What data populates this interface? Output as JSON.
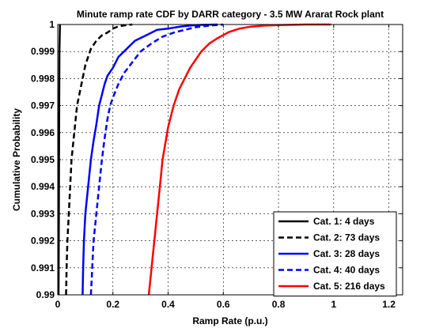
{
  "chart_data": {
    "type": "line",
    "title": "Minute ramp rate CDF by DARR category - 3.5 MW Ararat Rock plant",
    "xlabel": "Ramp Rate (p.u.)",
    "ylabel": "Cumulative Probability",
    "xlim": [
      0,
      1.25
    ],
    "ylim": [
      0.99,
      1.0
    ],
    "x_ticks": [
      "0",
      "0.2",
      "0.4",
      "0.6",
      "0.8",
      "1",
      "1.2"
    ],
    "x_tick_values": [
      0,
      0.2,
      0.4,
      0.6,
      0.8,
      1.0,
      1.2
    ],
    "y_ticks": [
      "0.99",
      "0.991",
      "0.992",
      "0.993",
      "0.994",
      "0.995",
      "0.996",
      "0.997",
      "0.998",
      "0.999",
      "1"
    ],
    "y_tick_values": [
      0.99,
      0.991,
      0.992,
      0.993,
      0.994,
      0.995,
      0.996,
      0.997,
      0.998,
      0.999,
      1.0
    ],
    "grid": "on",
    "legend_position": "bottom-right",
    "series": [
      {
        "name": "Cat. 1: 4 days",
        "color": "#000000",
        "style": "solid",
        "x": [
          0.003,
          0.004,
          0.005,
          0.006,
          0.008
        ],
        "y": [
          0.99,
          0.993,
          0.996,
          0.999,
          1.0
        ]
      },
      {
        "name": "Cat. 2: 73 days",
        "color": "#000000",
        "style": "dashed",
        "x": [
          0.03,
          0.032,
          0.035,
          0.04,
          0.045,
          0.05,
          0.06,
          0.07,
          0.08,
          0.09,
          0.1,
          0.12,
          0.14,
          0.16,
          0.18,
          0.2,
          0.22,
          0.25,
          0.27
        ],
        "y": [
          0.99,
          0.991,
          0.992,
          0.993,
          0.994,
          0.995,
          0.996,
          0.997,
          0.9975,
          0.998,
          0.9985,
          0.9991,
          0.9994,
          0.9996,
          0.9997,
          0.99985,
          0.99993,
          0.99998,
          1.0
        ]
      },
      {
        "name": "Cat. 3: 28 days",
        "color": "#0000ff",
        "style": "solid",
        "x": [
          0.09,
          0.092,
          0.095,
          0.1,
          0.11,
          0.12,
          0.13,
          0.14,
          0.15,
          0.16,
          0.17,
          0.18,
          0.2,
          0.22,
          0.25,
          0.28,
          0.32,
          0.36,
          0.4,
          0.45,
          0.5,
          0.58
        ],
        "y": [
          0.99,
          0.991,
          0.992,
          0.993,
          0.994,
          0.995,
          0.9957,
          0.9963,
          0.997,
          0.9974,
          0.9978,
          0.9981,
          0.9984,
          0.9988,
          0.9991,
          0.9994,
          0.9996,
          0.9998,
          0.99985,
          0.99993,
          0.99998,
          1.0
        ]
      },
      {
        "name": "Cat. 4: 40 days",
        "color": "#0000ff",
        "style": "dashed",
        "x": [
          0.12,
          0.125,
          0.13,
          0.14,
          0.15,
          0.16,
          0.17,
          0.18,
          0.19,
          0.2,
          0.22,
          0.24,
          0.27,
          0.3,
          0.34,
          0.38,
          0.42,
          0.46,
          0.5,
          0.55,
          0.6
        ],
        "y": [
          0.99,
          0.991,
          0.992,
          0.993,
          0.994,
          0.995,
          0.9958,
          0.9965,
          0.997,
          0.9973,
          0.9978,
          0.9982,
          0.9986,
          0.999,
          0.9993,
          0.99955,
          0.9997,
          0.9998,
          0.9999,
          0.99996,
          1.0
        ]
      },
      {
        "name": "Cat. 5: 216 days",
        "color": "#ff0000",
        "style": "solid",
        "x": [
          0.33,
          0.34,
          0.35,
          0.36,
          0.37,
          0.38,
          0.39,
          0.4,
          0.42,
          0.44,
          0.46,
          0.48,
          0.5,
          0.52,
          0.55,
          0.58,
          0.62,
          0.66,
          0.7,
          0.75,
          0.8,
          0.9,
          0.99
        ],
        "y": [
          0.99,
          0.991,
          0.992,
          0.993,
          0.994,
          0.995,
          0.9956,
          0.9962,
          0.997,
          0.9976,
          0.998,
          0.9984,
          0.9987,
          0.999,
          0.9993,
          0.9995,
          0.99972,
          0.99985,
          0.99992,
          0.99996,
          0.99998,
          1.0,
          1.0
        ]
      }
    ]
  }
}
